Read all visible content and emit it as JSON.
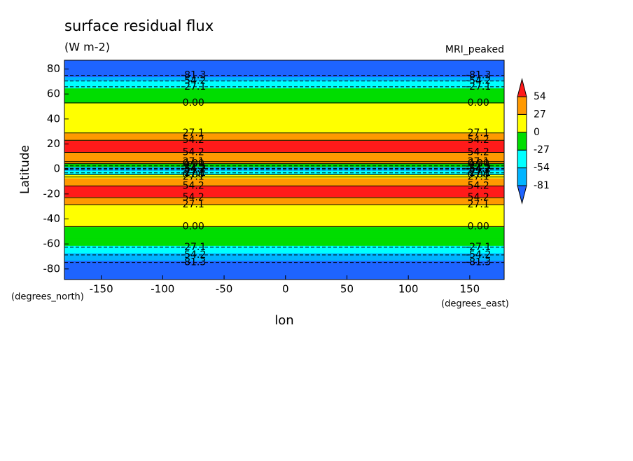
{
  "chart_data": {
    "type": "contour",
    "title": "surface residual flux",
    "subtitle": "(W m-2)",
    "annotation": "MRI_peaked",
    "x_label": "lon",
    "y_label": "Latitude",
    "x_units": "(degrees_east)",
    "y_units": "(degrees_north)",
    "xlim": [
      -180,
      178
    ],
    "ylim": [
      -88.5,
      87
    ],
    "xticks": [
      -150,
      -100,
      -50,
      0,
      50,
      100,
      150
    ],
    "yticks": [
      -80,
      -60,
      -40,
      -20,
      0,
      20,
      40,
      60,
      80
    ],
    "y": [
      87,
      84,
      81,
      78,
      75,
      72,
      69,
      66,
      63,
      60,
      57,
      54,
      51,
      48,
      45,
      42,
      39,
      36,
      33,
      30,
      27,
      24,
      21,
      18,
      15,
      12,
      9,
      6,
      3,
      0,
      -3,
      -6,
      -9,
      -12,
      -15,
      -18,
      -21,
      -24,
      -27,
      -30,
      -33,
      -36,
      -39,
      -42,
      -45,
      -48,
      -51,
      -54,
      -57,
      -60,
      -63,
      -66,
      -69,
      -72,
      -75,
      -78,
      -81,
      -84,
      -87
    ],
    "values": [
      -95,
      -95,
      -92,
      -88,
      -82,
      -65,
      -45,
      -28,
      -15,
      -10,
      -8,
      -3,
      5,
      12,
      15,
      18,
      15,
      12,
      15,
      22,
      35,
      50,
      62,
      65,
      60,
      50,
      40,
      30,
      -20,
      -60,
      -30,
      25,
      40,
      50,
      58,
      65,
      62,
      50,
      35,
      20,
      15,
      12,
      10,
      8,
      3,
      -5,
      -10,
      -12,
      -15,
      -20,
      -28,
      -40,
      -55,
      -70,
      -82,
      -88,
      -92,
      -95,
      -95
    ],
    "levels": [
      -81,
      -54,
      -27,
      0,
      27,
      54
    ],
    "colors": [
      "#1e64ff",
      "#00b4ff",
      "#00ffff",
      "#00dd00",
      "#ffff00",
      "#ff9900",
      "#ff1a1a"
    ],
    "contour_levels": [
      -81.3,
      -54.2,
      -27.1,
      {
        "value": 0,
        "label": "0.00"
      },
      27.1,
      54.2
    ]
  }
}
